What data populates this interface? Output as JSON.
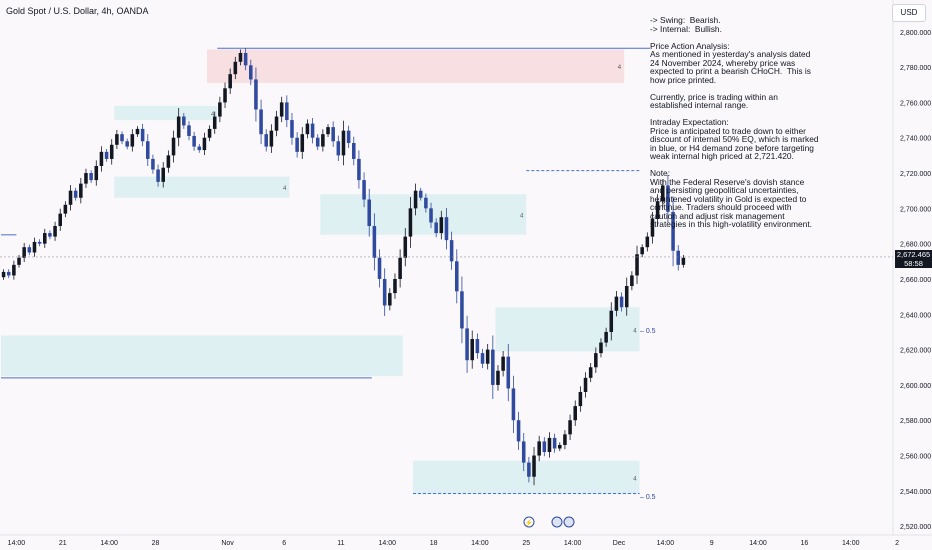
{
  "header": {
    "symbol": "Gold Spot / U.S. Dollar, 4h, OANDA",
    "currency_button": "USD"
  },
  "note": {
    "text": "-> Swing:  Bearish.\n-> Internal:  Bullish.\n\nPrice Action Analysis:\nAs mentioned in yesterday's analysis dated 24 November 2024, whereby price was expected to print a bearish CHoCH.  This is how price printed.\n\nCurrently, price is trading within an established internal range.\n\nIntraday Expectation:\nPrice is anticipated to trade down to either discount of internal 50% EQ, which is marked in blue, or H4 demand zone before targeting weak internal high priced at 2,721.420.\n\nNote:\nWith the Federal Reserve's dovish stance and persisting geopolitical uncertainties, heightened volatility in Gold is expected to continue. Traders should proceed with caution and adjust risk management strategies in this high-volatility environment."
  },
  "price_tag": {
    "price": "2,672.465",
    "countdown": "58:58"
  },
  "colors": {
    "bull": "#131722",
    "bear": "#2f4a9e",
    "demand_zone": "#dff0f3",
    "supply_zone": "#f7dfe2",
    "level_line": "#4a6fd0"
  },
  "chart_data": {
    "type": "candlestick",
    "ylim": [
      2515,
      2818
    ],
    "y_ticks": [
      2520,
      2540,
      2560,
      2580,
      2600,
      2620,
      2640,
      2660,
      2680,
      2700,
      2720,
      2740,
      2760,
      2780,
      2800
    ],
    "y_tick_labels": [
      "2,520.000",
      "2,540.000",
      "2,560.000",
      "2,580.000",
      "2,600.000",
      "2,620.000",
      "2,640.000",
      "2,660.000",
      "2,680.000",
      "2,700.000",
      "2,720.000",
      "2,740.000",
      "2,760.000",
      "2,780.000",
      "2,800.000"
    ],
    "x_labels": [
      "14:00",
      "21",
      "14:00",
      "28",
      "Nov",
      "6",
      "11",
      "14:00",
      "18",
      "14:00",
      "25",
      "14:00",
      "Dec",
      "14:00",
      "9",
      "14:00",
      "16",
      "14:00",
      "2"
    ],
    "x_count": 170,
    "label_slots": [
      3,
      12,
      21,
      30,
      44,
      55,
      66,
      75,
      84,
      93,
      102,
      111,
      120,
      129,
      138,
      147,
      156,
      165,
      174
    ],
    "current_price": 2672.465,
    "closes": [
      2664,
      2662,
      2668,
      2672,
      2678,
      2675,
      2681,
      2680,
      2686,
      2684,
      2690,
      2697,
      2702,
      2710,
      2706,
      2714,
      2720,
      2716,
      2724,
      2732,
      2728,
      2736,
      2742,
      2738,
      2735,
      2742,
      2745,
      2738,
      2728,
      2722,
      2715,
      2723,
      2730,
      2740,
      2752,
      2747,
      2741,
      2735,
      2733,
      2740,
      2745,
      2752,
      2760,
      2768,
      2776,
      2783,
      2788,
      2781,
      2773,
      2756,
      2742,
      2735,
      2744,
      2752,
      2760,
      2750,
      2740,
      2732,
      2742,
      2748,
      2740,
      2735,
      2742,
      2746,
      2738,
      2730,
      2744,
      2737,
      2728,
      2716,
      2705,
      2690,
      2672,
      2660,
      2645,
      2652,
      2660,
      2672,
      2684,
      2700,
      2710,
      2706,
      2700,
      2692,
      2686,
      2695,
      2682,
      2670,
      2653,
      2632,
      2614,
      2626,
      2618,
      2612,
      2620,
      2600,
      2608,
      2616,
      2598,
      2580,
      2568,
      2556,
      2548,
      2560,
      2568,
      2562,
      2570,
      2564,
      2566,
      2572,
      2580,
      2588,
      2596,
      2604,
      2610,
      2618,
      2624,
      2630,
      2642,
      2650,
      2644,
      2656,
      2662,
      2674,
      2678,
      2684,
      2694,
      2704,
      2713,
      2698,
      2676,
      2668,
      2672
    ],
    "zones": [
      {
        "kind": "supply",
        "top": 2790,
        "bottom": 2771,
        "start": 40,
        "end": 121,
        "label": "4"
      },
      {
        "kind": "demand",
        "top": 2758,
        "bottom": 2750,
        "start": 22,
        "end": 42,
        "label": "4"
      },
      {
        "kind": "demand",
        "top": 2718,
        "bottom": 2706,
        "start": 22,
        "end": 56,
        "label": "4"
      },
      {
        "kind": "demand",
        "top": 2708,
        "bottom": 2685,
        "start": 62,
        "end": 102,
        "label": "4"
      },
      {
        "kind": "demand",
        "top": 2644,
        "bottom": 2619,
        "start": 96,
        "end": 124,
        "label": "4"
      },
      {
        "kind": "demand",
        "top": 2628,
        "bottom": 2605,
        "start": 0,
        "end": 78,
        "label": ""
      },
      {
        "kind": "demand",
        "top": 2557,
        "bottom": 2538,
        "start": 80,
        "end": 124,
        "label": "4"
      }
    ],
    "level_lines": [
      {
        "price": 2790.7,
        "start": 42,
        "end": 126,
        "style": "solid"
      },
      {
        "price": 2721.4,
        "start": 102,
        "end": 124,
        "style": "dash"
      },
      {
        "price": 2685.0,
        "start": 0,
        "end": 3,
        "style": "solid"
      },
      {
        "price": 2604.0,
        "start": 0,
        "end": 72,
        "style": "solid"
      },
      {
        "price": 2538.5,
        "start": 80,
        "end": 124,
        "style": "dash"
      }
    ],
    "annotations": [
      {
        "price": 2631,
        "text": "– 0.5"
      },
      {
        "price": 2537,
        "text": "– 0.5"
      }
    ]
  }
}
